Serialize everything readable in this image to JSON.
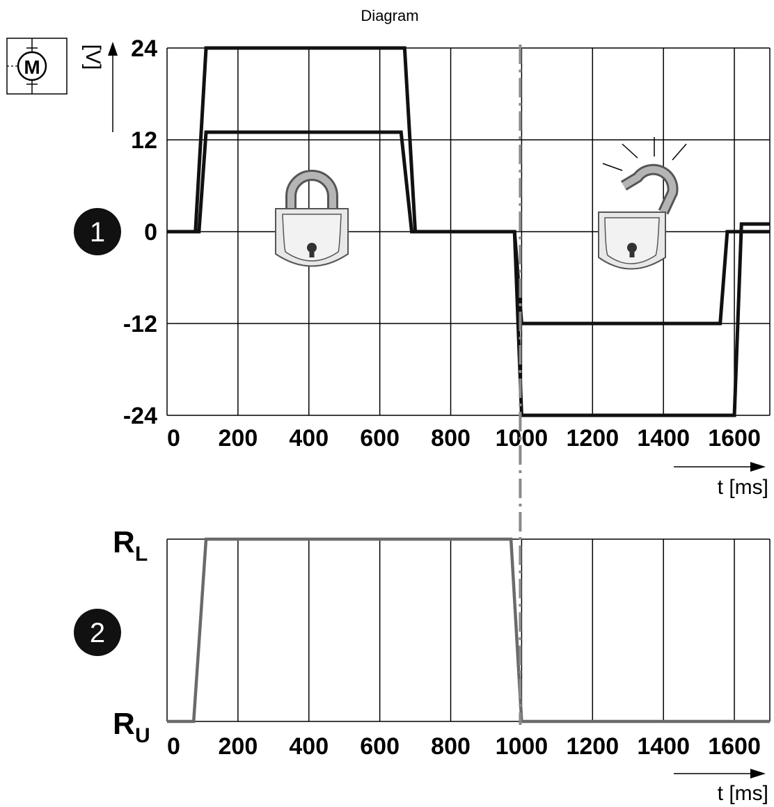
{
  "title": "Diagram",
  "markers": {
    "panel1": "1",
    "panel2": "2"
  },
  "colors": {
    "motor_line": "#111111",
    "relay_line": "#6a6a6a",
    "divider": "#8a8a8a",
    "lock_body": "#e8e8e8",
    "lock_shackle": "#a8a8a8"
  },
  "icons": {
    "motor": "motor-symbol-icon",
    "locked": "padlock-locked-icon",
    "unlocked": "padlock-unlocked-icon"
  },
  "chart_data": [
    {
      "type": "line",
      "ylabel": "[V]",
      "xlabel": "t [ms]",
      "xlim": [
        0,
        1700
      ],
      "ylim": [
        -24,
        24
      ],
      "xticks": [
        "0",
        "200",
        "400",
        "600",
        "800",
        "1000",
        "1200",
        "1400",
        "1600"
      ],
      "yticks": [
        "24",
        "12",
        "0",
        "-12",
        "-24"
      ],
      "grid": true,
      "divider_x": 1000,
      "series": [
        {
          "x": [
            0,
            80,
            110,
            670,
            700,
            980,
            1000,
            1600,
            1620,
            1700
          ],
          "y": [
            0,
            0,
            24,
            24,
            0,
            0,
            -24,
            -24,
            1,
            1
          ]
        },
        {
          "x": [
            0,
            90,
            110,
            660,
            690,
            980,
            1000,
            1560,
            1580,
            1700
          ],
          "y": [
            0,
            0,
            13,
            13,
            0,
            0,
            -12,
            -12,
            0,
            0
          ]
        }
      ]
    },
    {
      "type": "line",
      "xlabel": "t [ms]",
      "xlim": [
        0,
        1700
      ],
      "xticks": [
        "0",
        "200",
        "400",
        "600",
        "800",
        "1000",
        "1200",
        "1400",
        "1600"
      ],
      "ylevels": [
        "R",
        "R"
      ],
      "ylevel_subs": [
        "L",
        "U"
      ],
      "grid": true,
      "series": [
        {
          "x": [
            0,
            75,
            110,
            970,
            1000,
            1700
          ],
          "y": [
            0,
            0,
            1,
            1,
            0,
            0
          ]
        }
      ]
    }
  ]
}
